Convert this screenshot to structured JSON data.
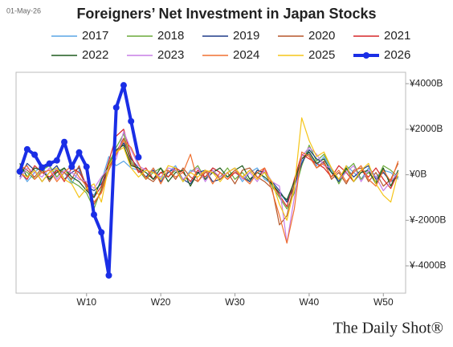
{
  "chart_data": {
    "type": "line",
    "title": "Foreigners’ Net Investment in Japan Stocks",
    "date": "01-May-26",
    "source": "The Daily Shot®",
    "x": [
      1,
      2,
      3,
      4,
      5,
      6,
      7,
      8,
      9,
      10,
      11,
      12,
      13,
      14,
      15,
      16,
      17,
      18,
      19,
      20,
      21,
      22,
      23,
      24,
      25,
      26,
      27,
      28,
      29,
      30,
      31,
      32,
      33,
      34,
      35,
      36,
      37,
      38,
      39,
      40,
      41,
      42,
      43,
      44,
      45,
      46,
      47,
      48,
      49,
      50,
      51,
      52
    ],
    "xlim": [
      0.5,
      53
    ],
    "xticks": [
      {
        "value": 10,
        "label": "W10"
      },
      {
        "value": 20,
        "label": "W20"
      },
      {
        "value": 30,
        "label": "W30"
      },
      {
        "value": 40,
        "label": "W40"
      },
      {
        "value": 50,
        "label": "W50"
      }
    ],
    "ylim": [
      -5200,
      4500
    ],
    "yticks": [
      {
        "value": 4000,
        "label": "¥4000B"
      },
      {
        "value": 2000,
        "label": "¥2000B"
      },
      {
        "value": 0,
        "label": "¥0B"
      },
      {
        "value": -2000,
        "label": "¥-2000B"
      },
      {
        "value": -4000,
        "label": "¥-4000B"
      }
    ],
    "grid": false,
    "series": [
      {
        "name": "2017",
        "color": "#5aa5e6",
        "values": [
          200,
          -300,
          100,
          400,
          -200,
          300,
          100,
          -400,
          200,
          -600,
          -900,
          -300,
          800,
          400,
          600,
          300,
          200,
          -100,
          300,
          -200,
          100,
          400,
          -300,
          200,
          100,
          -200,
          300,
          100,
          -100,
          200,
          -300,
          100,
          300,
          -200,
          -400,
          -800,
          -1200,
          -300,
          600,
          1000,
          400,
          800,
          200,
          -300,
          400,
          100,
          -200,
          300,
          -100,
          200,
          100,
          -200
        ]
      },
      {
        "name": "2018",
        "color": "#6aaa3a",
        "values": [
          300,
          100,
          -200,
          200,
          400,
          -100,
          300,
          -300,
          -500,
          -800,
          -1500,
          -600,
          500,
          1200,
          1800,
          600,
          200,
          -200,
          100,
          300,
          -100,
          200,
          -300,
          100,
          400,
          -200,
          100,
          -100,
          300,
          -200,
          100,
          -300,
          200,
          100,
          -500,
          -1000,
          -1500,
          -800,
          400,
          1300,
          600,
          900,
          300,
          -400,
          200,
          500,
          -200,
          100,
          -300,
          400,
          200,
          -100
        ]
      },
      {
        "name": "2019",
        "color": "#1f3c88",
        "values": [
          -100,
          500,
          200,
          -300,
          100,
          400,
          -200,
          100,
          300,
          -500,
          -700,
          -400,
          200,
          900,
          1400,
          700,
          300,
          -100,
          200,
          -300,
          100,
          300,
          -200,
          -400,
          100,
          200,
          -300,
          -200,
          100,
          300,
          -100,
          -300,
          200,
          100,
          -300,
          -700,
          -1200,
          -500,
          500,
          1100,
          700,
          500,
          100,
          -300,
          300,
          -100,
          200,
          400,
          -200,
          100,
          -300,
          -100
        ]
      },
      {
        "name": "2020",
        "color": "#b5562a",
        "values": [
          400,
          200,
          -100,
          300,
          -300,
          200,
          100,
          -200,
          400,
          -600,
          -1300,
          -700,
          300,
          1000,
          1600,
          500,
          200,
          -100,
          -300,
          100,
          200,
          -200,
          300,
          -100,
          -300,
          100,
          200,
          -200,
          100,
          -400,
          200,
          300,
          -100,
          -300,
          -600,
          -2200,
          -1800,
          -400,
          700,
          900,
          300,
          600,
          -200,
          100,
          -400,
          200,
          300,
          -300,
          100,
          -500,
          -200,
          500
        ]
      },
      {
        "name": "2021",
        "color": "#d62728",
        "values": [
          100,
          -200,
          400,
          100,
          -100,
          200,
          -300,
          300,
          100,
          -400,
          -1000,
          -500,
          600,
          1700,
          2000,
          800,
          100,
          300,
          -200,
          100,
          -100,
          300,
          100,
          -300,
          200,
          -100,
          300,
          100,
          -200,
          100,
          -100,
          200,
          -200,
          300,
          -400,
          -900,
          -1400,
          -200,
          900,
          700,
          500,
          300,
          -100,
          400,
          100,
          -300,
          200,
          -100,
          300,
          -200,
          -600,
          100
        ]
      },
      {
        "name": "2022",
        "color": "#1e5a1e",
        "values": [
          500,
          -100,
          300,
          200,
          -200,
          100,
          300,
          -100,
          -300,
          -700,
          -1000,
          -200,
          400,
          1100,
          1300,
          400,
          300,
          100,
          -200,
          300,
          -300,
          100,
          200,
          -500,
          100,
          -200,
          100,
          300,
          -100,
          200,
          400,
          -200,
          100,
          -100,
          -400,
          -800,
          -1100,
          -300,
          700,
          1000,
          500,
          700,
          100,
          -200,
          300,
          -300,
          100,
          200,
          -400,
          300,
          -500,
          200
        ]
      },
      {
        "name": "2023",
        "color": "#c77ee6",
        "values": [
          -200,
          300,
          100,
          -100,
          300,
          -200,
          200,
          100,
          -200,
          -300,
          -600,
          -100,
          300,
          700,
          1900,
          1100,
          400,
          200,
          100,
          -100,
          300,
          200,
          -200,
          100,
          300,
          -300,
          200,
          -100,
          100,
          300,
          -200,
          100,
          -300,
          200,
          -300,
          -500,
          -3000,
          -1000,
          800,
          1200,
          900,
          400,
          300,
          -200,
          100,
          400,
          -300,
          200,
          -100,
          -700,
          -300,
          100
        ]
      },
      {
        "name": "2024",
        "color": "#f07030",
        "values": [
          200,
          400,
          -200,
          100,
          200,
          -300,
          100,
          400,
          -100,
          -500,
          -1200,
          -800,
          200,
          900,
          1500,
          1200,
          500,
          -200,
          300,
          -400,
          200,
          -100,
          100,
          900,
          -300,
          200,
          -400,
          100,
          -200,
          200,
          -100,
          -400,
          100,
          300,
          -700,
          -1800,
          -3000,
          -1500,
          1000,
          800,
          300,
          500,
          -100,
          200,
          -300,
          100,
          400,
          -200,
          -500,
          200,
          -300,
          600
        ]
      },
      {
        "name": "2025",
        "color": "#f5c518",
        "values": [
          100,
          -100,
          200,
          -300,
          100,
          300,
          -200,
          -400,
          -1000,
          -600,
          -400,
          -1200,
          400,
          1000,
          1200,
          300,
          -100,
          200,
          100,
          -200,
          400,
          300,
          -300,
          100,
          -100,
          200,
          100,
          -300,
          100,
          300,
          -100,
          200,
          -200,
          100,
          -300,
          -1300,
          -2000,
          -600,
          2500,
          1500,
          800,
          1000,
          300,
          -200,
          400,
          -300,
          200,
          500,
          -400,
          -900,
          -1200,
          100
        ]
      },
      {
        "name": "2026",
        "color": "#1a2ee6",
        "values": [
          140,
          1120,
          880,
          320,
          490,
          630,
          1440,
          350,
          980,
          350,
          -1750,
          -2530,
          -4420,
          2950,
          3930,
          2350,
          770,
          null,
          null,
          null,
          null,
          null,
          null,
          null,
          null,
          null,
          null,
          null,
          null,
          null,
          null,
          null,
          null,
          null,
          null,
          null,
          null,
          null,
          null,
          null,
          null,
          null,
          null,
          null,
          null,
          null,
          null,
          null,
          null,
          null,
          null,
          null
        ]
      }
    ]
  }
}
